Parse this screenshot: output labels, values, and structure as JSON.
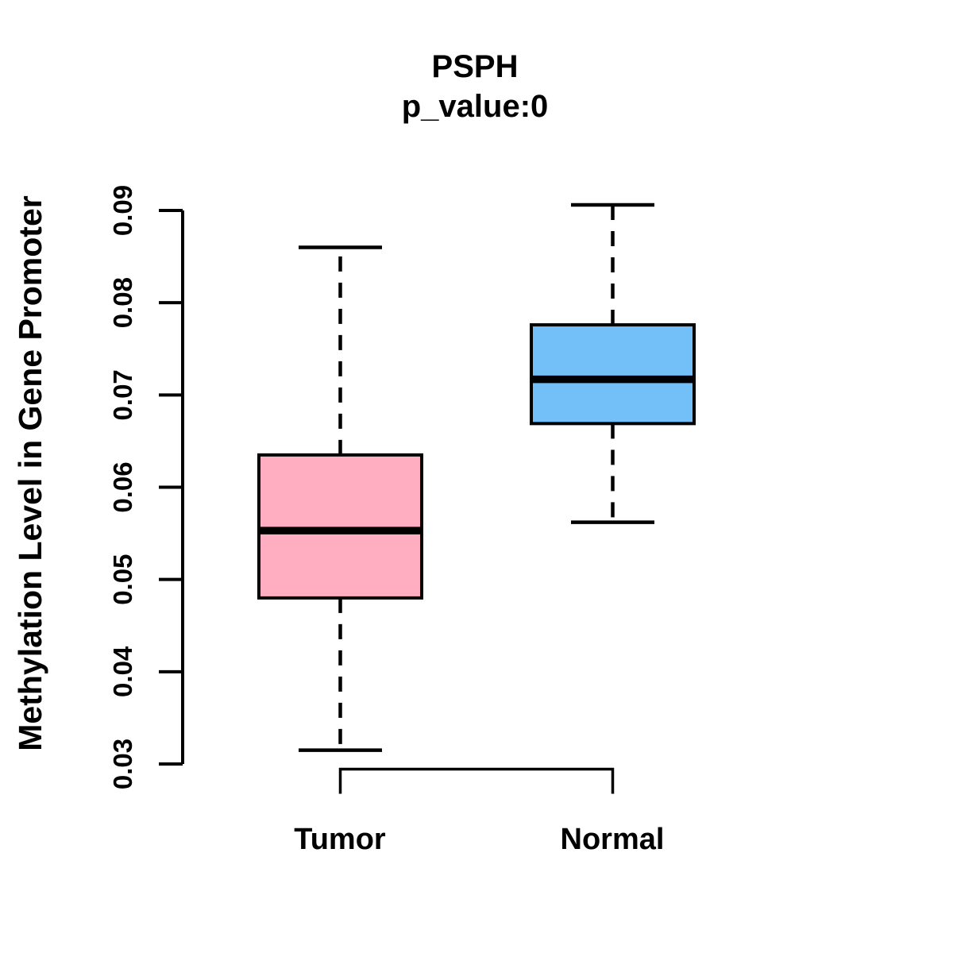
{
  "title": {
    "line1": "PSPH",
    "line2": "p_value:0"
  },
  "y_axis": {
    "label": "Methylation Level in Gene Promoter"
  },
  "chart_data": {
    "type": "boxplot",
    "title": "PSPH",
    "subtitle": "p_value:0",
    "ylabel": "Methylation Level in Gene Promoter",
    "xlabel": "",
    "ylim": [
      0.03,
      0.09
    ],
    "yticks": [
      0.03,
      0.04,
      0.05,
      0.06,
      0.07,
      0.08,
      0.09
    ],
    "ytick_labels": [
      "0.03",
      "0.04",
      "0.05",
      "0.06",
      "0.07",
      "0.08",
      "0.09"
    ],
    "categories": [
      "Tumor",
      "Normal"
    ],
    "grid": false,
    "legend": "none",
    "series": [
      {
        "name": "Tumor",
        "color": "#FFADC0",
        "lower_whisker": 0.0315,
        "q1": 0.048,
        "median": 0.0553,
        "q3": 0.0635,
        "upper_whisker": 0.086
      },
      {
        "name": "Normal",
        "color": "#73BFF7",
        "lower_whisker": 0.0562,
        "q1": 0.0669,
        "median": 0.0717,
        "q3": 0.0776,
        "upper_whisker": 0.0906
      }
    ],
    "colors": {
      "box_border": "#000000",
      "median_line": "#000000",
      "axis": "#000000",
      "text": "#000000"
    }
  }
}
